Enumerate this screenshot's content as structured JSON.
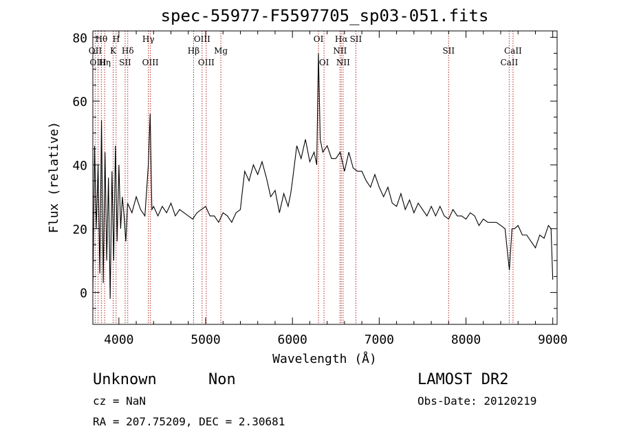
{
  "chart_data": {
    "type": "line",
    "title": "spec-55977-F5597705_sp03-051.fits",
    "xlabel": "Wavelength (Å)",
    "ylabel": "Flux (relative)",
    "xlim": [
      3700,
      9050
    ],
    "ylim": [
      -10,
      82
    ],
    "x_ticks": [
      4000,
      5000,
      6000,
      7000,
      8000,
      9000
    ],
    "y_ticks": [
      0,
      20,
      40,
      60,
      80
    ],
    "grid": false,
    "series": [
      {
        "x": [
          3700,
          3720,
          3740,
          3760,
          3780,
          3800,
          3820,
          3840,
          3860,
          3880,
          3900,
          3920,
          3940,
          3960,
          3980,
          4000,
          4020,
          4040,
          4060,
          4080,
          4100,
          4150,
          4200,
          4250,
          4300,
          4340,
          4360,
          4380,
          4400,
          4450,
          4500,
          4550,
          4600,
          4650,
          4700,
          4750,
          4800,
          4850,
          4900,
          4950,
          5000,
          5050,
          5100,
          5150,
          5200,
          5250,
          5300,
          5350,
          5400,
          5420,
          5450,
          5500,
          5550,
          5600,
          5650,
          5700,
          5750,
          5800,
          5850,
          5900,
          5950,
          5980,
          6000,
          6050,
          6100,
          6150,
          6200,
          6250,
          6280,
          6300,
          6320,
          6350,
          6400,
          6450,
          6500,
          6550,
          6600,
          6650,
          6700,
          6750,
          6800,
          6850,
          6900,
          6950,
          7000,
          7050,
          7100,
          7150,
          7200,
          7250,
          7300,
          7350,
          7400,
          7450,
          7500,
          7550,
          7600,
          7650,
          7700,
          7750,
          7800,
          7850,
          7900,
          7950,
          8000,
          8050,
          8100,
          8150,
          8200,
          8250,
          8300,
          8350,
          8400,
          8450,
          8500,
          8530,
          8560,
          8600,
          8650,
          8700,
          8750,
          8800,
          8850,
          8900,
          8950,
          8980,
          9000
        ],
        "y": [
          0,
          46,
          20,
          40,
          6,
          54,
          3,
          44,
          10,
          36,
          -2,
          38,
          10,
          46,
          16,
          40,
          20,
          30,
          24,
          16,
          28,
          25,
          30,
          26,
          24,
          40,
          56,
          26,
          27,
          24,
          27,
          25,
          28,
          24,
          26,
          25,
          24,
          23,
          25,
          26,
          27,
          24,
          24,
          22,
          25,
          24,
          22,
          25,
          26,
          31,
          38,
          35,
          40,
          37,
          41,
          36,
          30,
          32,
          25,
          31,
          27,
          31,
          35,
          46,
          42,
          48,
          41,
          44,
          40,
          75,
          48,
          44,
          46,
          42,
          42,
          44,
          38,
          44,
          39,
          38,
          38,
          35,
          33,
          37,
          33,
          30,
          33,
          28,
          27,
          31,
          26,
          29,
          25,
          28,
          26,
          24,
          27,
          24,
          27,
          24,
          23,
          26,
          24,
          24,
          23,
          25,
          24,
          21,
          23,
          22,
          22,
          22,
          21,
          20,
          7,
          20,
          20,
          21,
          18,
          18,
          16,
          14,
          18,
          17,
          21,
          20,
          4
        ]
      }
    ],
    "lines": [
      {
        "label": "Hθ",
        "x": 3798,
        "row": 0
      },
      {
        "label": "OII",
        "x": 3727,
        "row": 1
      },
      {
        "label": "OIII",
        "x": 3760,
        "row": 2
      },
      {
        "label": "Hη",
        "x": 3836,
        "row": 2
      },
      {
        "label": "H",
        "x": 3968,
        "row": 0
      },
      {
        "label": "K",
        "x": 3934,
        "row": 1
      },
      {
        "label": "Hδ",
        "x": 4102,
        "row": 1
      },
      {
        "label": "SII",
        "x": 4072,
        "row": 2
      },
      {
        "label": "Hγ",
        "x": 4340,
        "row": 0
      },
      {
        "label": "OIII",
        "x": 4363,
        "row": 2
      },
      {
        "label": "OIII",
        "x": 4959,
        "row": 0
      },
      {
        "label": "Hβ",
        "x": 4861,
        "row": 1
      },
      {
        "label": "OIII",
        "x": 5007,
        "row": 2
      },
      {
        "label": "Mg",
        "x": 5175,
        "row": 1
      },
      {
        "label": "OI",
        "x": 6300,
        "row": 0
      },
      {
        "label": "OI",
        "x": 6364,
        "row": 2
      },
      {
        "label": "Hα",
        "x": 6563,
        "row": 0
      },
      {
        "label": "SII",
        "x": 6731,
        "row": 0
      },
      {
        "label": "NII",
        "x": 6548,
        "row": 1
      },
      {
        "label": "NII",
        "x": 6584,
        "row": 2
      },
      {
        "label": "SII",
        "x": 7800,
        "row": 1
      },
      {
        "label": "CaII",
        "x": 8542,
        "row": 1
      },
      {
        "label": "CaII",
        "x": 8498,
        "row": 2
      }
    ]
  },
  "info": {
    "class_label": "Unknown",
    "subclass_label": "Non",
    "cz_text": "cz = NaN",
    "coords_text": "RA = 207.75209, DEC =   2.30681",
    "survey": "LAMOST DR2",
    "obs_date": "Obs-Date: 20120219"
  }
}
